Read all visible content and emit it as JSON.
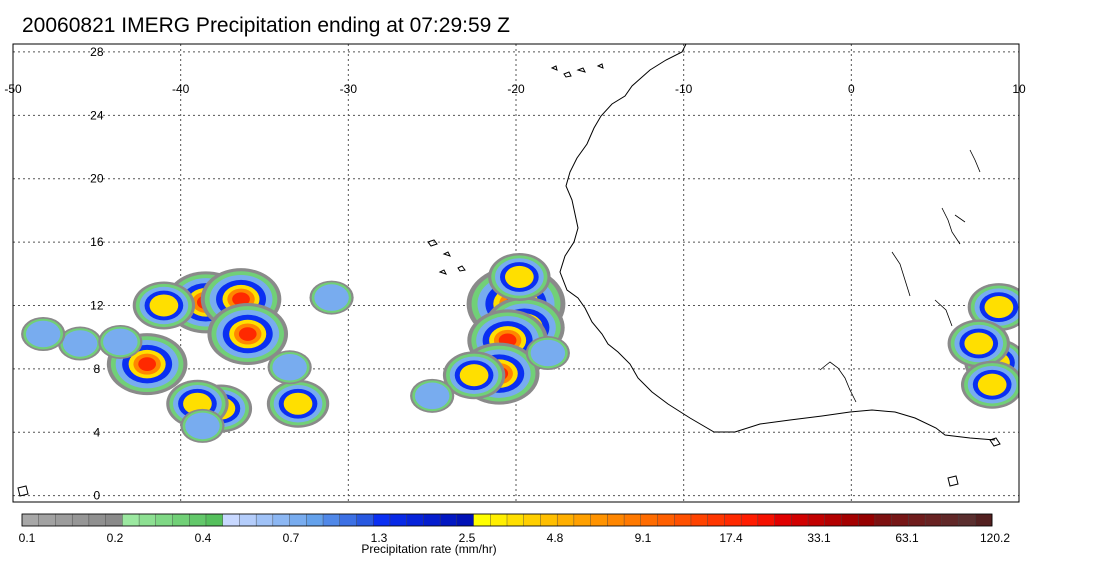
{
  "title": "20060821 IMERG Precipitation ending at 07:29:59 Z",
  "map": {
    "lon_range": [
      -50,
      10
    ],
    "lat_range": [
      -0.4,
      28.5
    ],
    "lon_ticks": [
      -50,
      -40,
      -30,
      -20,
      -10,
      0,
      10
    ],
    "lat_ticks": [
      0,
      4,
      8,
      12,
      16,
      20,
      24,
      28
    ],
    "lon_tick_labels": [
      "-50",
      "-40",
      "-30",
      "-20",
      "-10",
      "0",
      "10"
    ],
    "lat_tick_labels": [
      "0",
      "4",
      "8",
      "12",
      "16",
      "20",
      "24",
      "28"
    ],
    "grid": true,
    "coastline_color": "#000000",
    "precip_cells": [
      {
        "lon": -38.5,
        "lat": 12.2,
        "intensity": 3
      },
      {
        "lon": -36.4,
        "lat": 12.4,
        "intensity": 3
      },
      {
        "lon": -36.0,
        "lat": 10.2,
        "intensity": 3
      },
      {
        "lon": -41.0,
        "lat": 12.0,
        "intensity": 2
      },
      {
        "lon": -42.0,
        "lat": 8.3,
        "intensity": 3
      },
      {
        "lon": -37.6,
        "lat": 5.5,
        "intensity": 2
      },
      {
        "lon": -39.0,
        "lat": 5.8,
        "intensity": 2
      },
      {
        "lon": -38.7,
        "lat": 4.4,
        "intensity": 1
      },
      {
        "lon": -33.0,
        "lat": 5.8,
        "intensity": 2
      },
      {
        "lon": -46.0,
        "lat": 9.6,
        "intensity": 1
      },
      {
        "lon": -43.6,
        "lat": 9.7,
        "intensity": 1
      },
      {
        "lon": -48.2,
        "lat": 10.2,
        "intensity": 1
      },
      {
        "lon": -20.0,
        "lat": 12.1,
        "intensity": 4
      },
      {
        "lon": -19.5,
        "lat": 10.6,
        "intensity": 3
      },
      {
        "lon": -20.5,
        "lat": 9.8,
        "intensity": 3
      },
      {
        "lon": -21.0,
        "lat": 7.7,
        "intensity": 3
      },
      {
        "lon": -22.5,
        "lat": 7.6,
        "intensity": 2
      },
      {
        "lon": -19.8,
        "lat": 13.8,
        "intensity": 2
      },
      {
        "lon": -18.1,
        "lat": 9.0,
        "intensity": 1
      },
      {
        "lon": -25.0,
        "lat": 6.3,
        "intensity": 1
      },
      {
        "lon": 8.8,
        "lat": 11.9,
        "intensity": 2
      },
      {
        "lon": 8.6,
        "lat": 8.4,
        "intensity": 2
      },
      {
        "lon": 7.6,
        "lat": 9.6,
        "intensity": 2
      },
      {
        "lon": 8.4,
        "lat": 7.0,
        "intensity": 2
      },
      {
        "lon": -31.0,
        "lat": 12.5,
        "intensity": 1
      },
      {
        "lon": -33.5,
        "lat": 8.1,
        "intensity": 1
      }
    ]
  },
  "colorbar": {
    "title": "Precipitation rate (mm/hr)",
    "labels": [
      "0.1",
      "0.2",
      "0.4",
      "0.7",
      "1.3",
      "2.5",
      "4.8",
      "9.1",
      "17.4",
      "33.1",
      "63.1",
      "120.2"
    ],
    "colors": [
      "#a8a8a8",
      "#a2a2a2",
      "#9c9c9c",
      "#969696",
      "#909090",
      "#8a8a8a",
      "#9be8a0",
      "#8de092",
      "#7fd885",
      "#71d077",
      "#63c86a",
      "#55c05c",
      "#c8d8ff",
      "#b4cdfb",
      "#a0c2f7",
      "#8cb7f3",
      "#78acef",
      "#64a1eb",
      "#5088e8",
      "#3c70e4",
      "#2858e0",
      "#0a2ff2",
      "#0829e6",
      "#0623da",
      "#041dce",
      "#0217c2",
      "#0011b6",
      "#ffff00",
      "#ffef00",
      "#ffdf00",
      "#ffcf00",
      "#ffbf00",
      "#ffaf00",
      "#ffa000",
      "#ff9300",
      "#ff8600",
      "#ff7900",
      "#ff6c00",
      "#ff5f00",
      "#ff5000",
      "#ff4300",
      "#ff3600",
      "#ff2900",
      "#ff1c00",
      "#f51000",
      "#e00000",
      "#d10000",
      "#c20000",
      "#b30000",
      "#a40000",
      "#950000",
      "#7d1010",
      "#761616",
      "#6f1c1c",
      "#682222",
      "#612828",
      "#5a2e2e",
      "#532020"
    ]
  }
}
